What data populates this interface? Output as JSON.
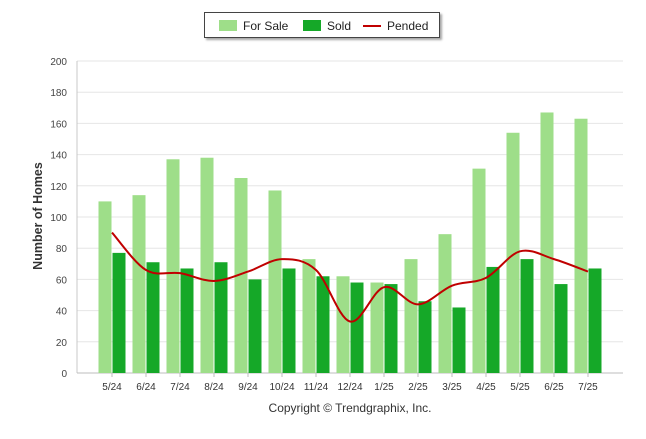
{
  "chart_data": {
    "type": "bar",
    "categories": [
      "5/24",
      "6/24",
      "7/24",
      "8/24",
      "9/24",
      "10/24",
      "11/24",
      "12/24",
      "1/25",
      "2/25",
      "3/25",
      "4/25",
      "5/25",
      "6/25",
      "7/25"
    ],
    "series": [
      {
        "name": "For Sale",
        "kind": "bar",
        "color": "#9ede89",
        "values": [
          110,
          114,
          137,
          138,
          125,
          117,
          73,
          62,
          58,
          73,
          89,
          131,
          154,
          167,
          163
        ]
      },
      {
        "name": "Sold",
        "kind": "bar",
        "color": "#15a828",
        "values": [
          77,
          71,
          67,
          71,
          60,
          67,
          62,
          58,
          57,
          46,
          42,
          68,
          73,
          57,
          67
        ]
      },
      {
        "name": "Pended",
        "kind": "line",
        "color": "#c00000",
        "values": [
          90,
          66,
          64,
          59,
          65,
          73,
          66,
          33,
          55,
          44,
          56,
          61,
          78,
          73,
          65
        ]
      }
    ],
    "ylabel": "Number of Homes",
    "xlabel": "",
    "ylim": [
      0,
      200
    ],
    "yticks": [
      0,
      20,
      40,
      60,
      80,
      100,
      120,
      140,
      160,
      180,
      200
    ],
    "grid": true,
    "legend_position": "top-center"
  },
  "legend": {
    "for_sale": "For Sale",
    "sold": "Sold",
    "pended": "Pended"
  },
  "footer": {
    "copyright": "Copyright © Trendgraphix, Inc."
  }
}
